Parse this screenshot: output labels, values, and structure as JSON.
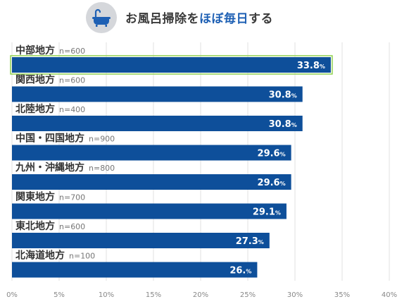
{
  "header": {
    "title_prefix": "お風呂掃除を",
    "title_highlight": "ほぼ毎日",
    "title_suffix": "する",
    "icon": "bathtub-icon",
    "highlight_color": "#1e60b4"
  },
  "chart_data": {
    "type": "bar",
    "orientation": "horizontal",
    "categories": [
      "中部地方",
      "関西地方",
      "北陸地方",
      "中国・四国地方",
      "九州・沖縄地方",
      "関東地方",
      "東北地方",
      "北海道地方"
    ],
    "sample_sizes": [
      "n=600",
      "n=600",
      "n=400",
      "n=900",
      "n=800",
      "n=700",
      "n=600",
      "n=100"
    ],
    "values": [
      33.8,
      30.8,
      30.8,
      29.6,
      29.6,
      29.1,
      27.3,
      26.0
    ],
    "value_labels": [
      "33.8",
      "30.8",
      "30.8",
      "29.6",
      "29.6",
      "29.1",
      "27.3",
      "26."
    ],
    "value_suffix": "%",
    "xlim": [
      0,
      40
    ],
    "xticks": [
      "0%",
      "5%",
      "10%",
      "15%",
      "20%",
      "25%",
      "30%",
      "35%",
      "40%"
    ],
    "grid": true,
    "bar_color": "#0e4f9a",
    "highlight_outline_color": "#8fd14f"
  }
}
